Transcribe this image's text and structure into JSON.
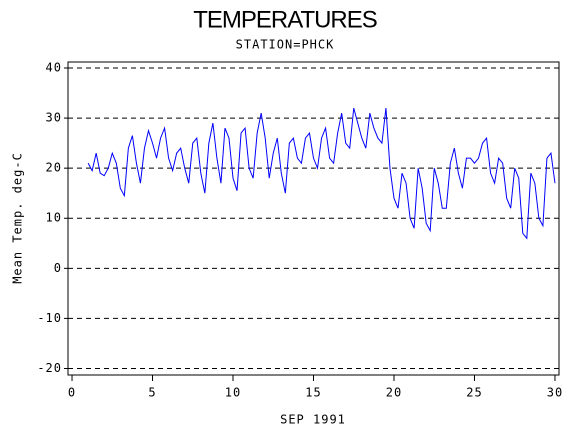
{
  "chart_data": {
    "type": "line",
    "title": "TEMPERATURES",
    "subtitle": "STATION=PHCK",
    "x_label": "SEP 1991",
    "y_label": "Mean Temp. deg-C",
    "xlim": [
      -0.25,
      30.25
    ],
    "ylim": [
      -21.3,
      41.2
    ],
    "xticks": [
      0,
      5,
      10,
      15,
      20,
      25,
      30
    ],
    "yticks": [
      -20,
      -10,
      0,
      10,
      20,
      30,
      40
    ],
    "grid": true,
    "x": [
      1,
      1.25,
      1.5,
      1.75,
      2,
      2.25,
      2.5,
      2.75,
      3,
      3.25,
      3.5,
      3.75,
      4,
      4.25,
      4.5,
      4.75,
      5,
      5.25,
      5.5,
      5.75,
      6,
      6.25,
      6.5,
      6.75,
      7,
      7.25,
      7.5,
      7.75,
      8,
      8.25,
      8.5,
      8.75,
      9,
      9.25,
      9.5,
      9.75,
      10,
      10.25,
      10.5,
      10.75,
      11,
      11.25,
      11.5,
      11.75,
      12,
      12.25,
      12.5,
      12.75,
      13,
      13.25,
      13.5,
      13.75,
      14,
      14.25,
      14.5,
      14.75,
      15,
      15.25,
      15.5,
      15.75,
      16,
      16.25,
      16.5,
      16.75,
      17,
      17.25,
      17.5,
      17.75,
      18,
      18.25,
      18.5,
      18.75,
      19,
      19.25,
      19.5,
      19.75,
      20,
      20.25,
      20.5,
      20.75,
      21,
      21.25,
      21.5,
      21.75,
      22,
      22.25,
      22.5,
      22.75,
      23,
      23.25,
      23.5,
      23.75,
      24,
      24.25,
      24.5,
      24.75,
      25,
      25.25,
      25.5,
      25.75,
      26,
      26.25,
      26.5,
      26.75,
      27,
      27.25,
      27.5,
      27.75,
      28,
      28.25,
      28.5,
      28.75,
      29,
      29.25,
      29.5,
      29.75,
      30
    ],
    "series": [
      {
        "name": "Mean Temp",
        "color": "#0000ff",
        "values": [
          21,
          19.5,
          23,
          19,
          18.5,
          20,
          23,
          21,
          16,
          14.5,
          24,
          26.5,
          21,
          17,
          24,
          27.5,
          25,
          22,
          26,
          28,
          22,
          19.5,
          23,
          24,
          20,
          17,
          25,
          26,
          19,
          15,
          25,
          29,
          22,
          17,
          28,
          26,
          18,
          15.5,
          27,
          28,
          20,
          18,
          27,
          31,
          26,
          18,
          23,
          26,
          19,
          15,
          25,
          26,
          22,
          21,
          26,
          27,
          22,
          20,
          26,
          28,
          22,
          21,
          27,
          31,
          25,
          24,
          32,
          29,
          26,
          24,
          31,
          28,
          26,
          25,
          32,
          20,
          14,
          12,
          19,
          17,
          10,
          8,
          20,
          16,
          9,
          7.5,
          20,
          17,
          12,
          12,
          21,
          24,
          19,
          16,
          22,
          22,
          21,
          22,
          25,
          26,
          19,
          17,
          22,
          21,
          14,
          12,
          20,
          18,
          7,
          6,
          19,
          17,
          10,
          8.5,
          22,
          23,
          17
        ]
      }
    ]
  }
}
